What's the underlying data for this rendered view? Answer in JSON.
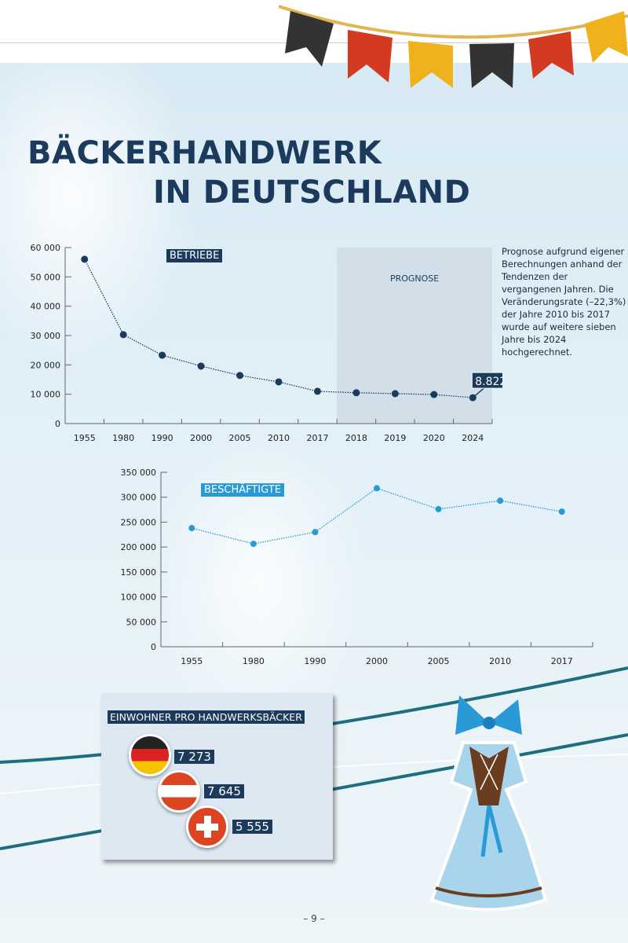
{
  "title": {
    "line1": "BÄCKERHANDWERK",
    "line2": "IN DEUTSCHLAND"
  },
  "note": "Prognose aufgrund eigener Berechnungen anhand der Tendenzen der vergangenen Jahren. Die Veränderungsrate (–22,3%) der Jahre 2010 bis 2017 wurde auf weitere sieben Jahre bis 2024 hochgerechnet.",
  "chart_data": [
    {
      "type": "line",
      "title": "BETRIEBE",
      "categories": [
        "1955",
        "1980",
        "1990",
        "2000",
        "2005",
        "2010",
        "2017",
        "2018",
        "2019",
        "2020",
        "2024"
      ],
      "values": [
        56000,
        30300,
        23300,
        19600,
        16400,
        14200,
        11000,
        10500,
        10200,
        9900,
        8822
      ],
      "ylim": [
        0,
        60000
      ],
      "yticks": [
        "0",
        "10 000",
        "20 000",
        "30 000",
        "40 000",
        "50 000",
        "60 000"
      ],
      "annotation": {
        "label": "8.822",
        "category": "2024"
      },
      "shaded_region": {
        "label": "PROGNOSE",
        "from": "2018",
        "to": "2024"
      },
      "color": "#1c3a5c"
    },
    {
      "type": "line",
      "title": "BESCHÄFTIGTE",
      "categories": [
        "1955",
        "1980",
        "1990",
        "2000",
        "2005",
        "2010",
        "2017"
      ],
      "values": [
        238000,
        206500,
        230000,
        318000,
        276000,
        293000,
        271000
      ],
      "ylim": [
        0,
        350000
      ],
      "yticks": [
        "0",
        "50 000",
        "100 000",
        "150 000",
        "200 000",
        "250 000",
        "300 000",
        "350 000"
      ],
      "color": "#2a9ad6"
    }
  ],
  "residents": {
    "title": "EINWOHNER PRO HANDWERKSBÄCKER",
    "items": [
      {
        "country": "Deutschland",
        "value": "7 273"
      },
      {
        "country": "Österreich",
        "value": "7 645"
      },
      {
        "country": "Schweiz",
        "value": "5 555"
      }
    ]
  },
  "page_number": "– 9 –"
}
